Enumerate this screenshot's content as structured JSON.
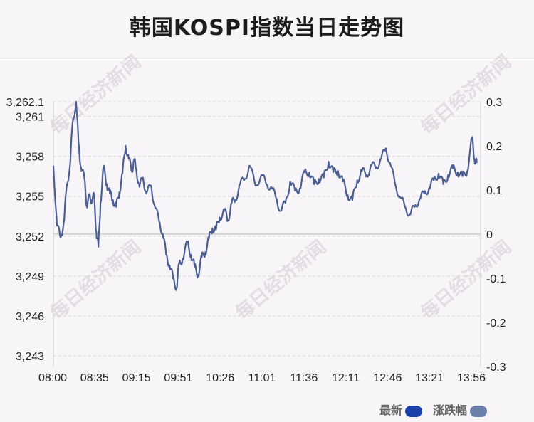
{
  "title": "韩国KOSPI指数当日走势图",
  "watermark": "每日经济新闻",
  "legend": [
    {
      "label": "最新",
      "color": "#1a3fa8"
    },
    {
      "label": "涨跌幅",
      "color": "#6a7faa"
    }
  ],
  "colors": {
    "line": "#4c5f94",
    "grid": "#d9d9d9",
    "zero_line": "#cccccc"
  },
  "chart_data": {
    "type": "line",
    "x_ticks": [
      "08:00",
      "08:35",
      "09:15",
      "09:51",
      "10:26",
      "11:01",
      "11:36",
      "12:11",
      "12:46",
      "13:21",
      "13:56"
    ],
    "y_left_ticks": [
      "3,262.1",
      "3,261",
      "3,258",
      "3,255",
      "3,252",
      "3,249",
      "3,246",
      "3,243"
    ],
    "y_right_ticks": [
      "0.3",
      "0.2",
      "0.1",
      "0",
      "-0.1",
      "-0.2",
      "-0.3"
    ],
    "ylim_left": [
      3242.2,
      3262.1
    ],
    "ylim_right": [
      -0.3,
      0.3
    ],
    "grid": true,
    "series": [
      {
        "x": [
          "08:00",
          "08:03",
          "08:06",
          "08:09",
          "08:11",
          "08:14",
          "08:16",
          "08:19",
          "08:21",
          "08:23",
          "08:26",
          "08:28",
          "08:30",
          "08:32",
          "08:34",
          "08:36",
          "08:38",
          "08:40",
          "08:43",
          "08:46",
          "08:49",
          "08:52",
          "08:55",
          "08:58",
          "09:01",
          "09:04",
          "09:07",
          "09:10",
          "09:12",
          "09:14",
          "09:17",
          "09:20",
          "09:23",
          "09:27",
          "09:30",
          "09:34",
          "09:37",
          "09:40",
          "09:43",
          "09:46",
          "09:49",
          "09:51",
          "09:54",
          "09:58",
          "10:01",
          "10:04",
          "10:07",
          "10:10",
          "10:13",
          "10:16",
          "10:19",
          "10:22",
          "10:25",
          "10:29",
          "10:32",
          "10:35",
          "10:38",
          "10:42",
          "10:46",
          "10:50",
          "10:55",
          "11:00",
          "11:04",
          "11:08",
          "11:12",
          "11:16",
          "11:20",
          "11:24",
          "11:28",
          "11:32",
          "11:36",
          "11:40",
          "11:44",
          "11:48",
          "11:52",
          "11:56",
          "12:00",
          "12:04",
          "12:08",
          "12:12",
          "12:16",
          "12:20",
          "12:24",
          "12:28",
          "12:32",
          "12:36",
          "12:40",
          "12:44",
          "12:48",
          "12:52",
          "12:56",
          "13:00",
          "13:04",
          "13:08",
          "13:12",
          "13:16",
          "13:20",
          "13:24",
          "13:28",
          "13:32",
          "13:36",
          "13:40",
          "13:44",
          "13:48",
          "13:52",
          "13:56",
          "13:58",
          "14:00"
        ],
        "values": [
          3257.3,
          3252.8,
          3251.9,
          3253.2,
          3255.7,
          3257.4,
          3260.5,
          3262.1,
          3259.0,
          3257.2,
          3256.3,
          3254.2,
          3255.0,
          3254.7,
          3255.0,
          3252.3,
          3251.2,
          3254.5,
          3257.2,
          3255.9,
          3255.2,
          3254.7,
          3254.2,
          3255.3,
          3256.7,
          3258.8,
          3257.8,
          3256.9,
          3257.7,
          3257.1,
          3255.7,
          3256.4,
          3255.2,
          3255.8,
          3254.3,
          3253.1,
          3252.2,
          3250.6,
          3249.8,
          3248.8,
          3248.1,
          3249.9,
          3250.3,
          3251.5,
          3250.6,
          3249.7,
          3249.1,
          3250.4,
          3250.8,
          3251.8,
          3252.6,
          3252.5,
          3253.4,
          3253.9,
          3253.2,
          3254.5,
          3254.7,
          3255.9,
          3256.3,
          3257.3,
          3255.8,
          3256.6,
          3255.9,
          3255.7,
          3254.9,
          3253.9,
          3254.5,
          3256.1,
          3255.4,
          3255.6,
          3256.8,
          3256.8,
          3255.9,
          3256.3,
          3256.4,
          3257.6,
          3256.8,
          3256.9,
          3256.1,
          3255.1,
          3254.7,
          3256.2,
          3256.9,
          3256.6,
          3257.3,
          3257.2,
          3257.8,
          3258.6,
          3257.3,
          3255.8,
          3254.9,
          3254.2,
          3253.6,
          3254.2,
          3254.8,
          3255.2,
          3255.6,
          3256.2,
          3256.7,
          3255.9,
          3256.6,
          3257.1,
          3256.8,
          3256.5,
          3256.9,
          3259.4,
          3257.8,
          3257.5
        ]
      }
    ]
  }
}
